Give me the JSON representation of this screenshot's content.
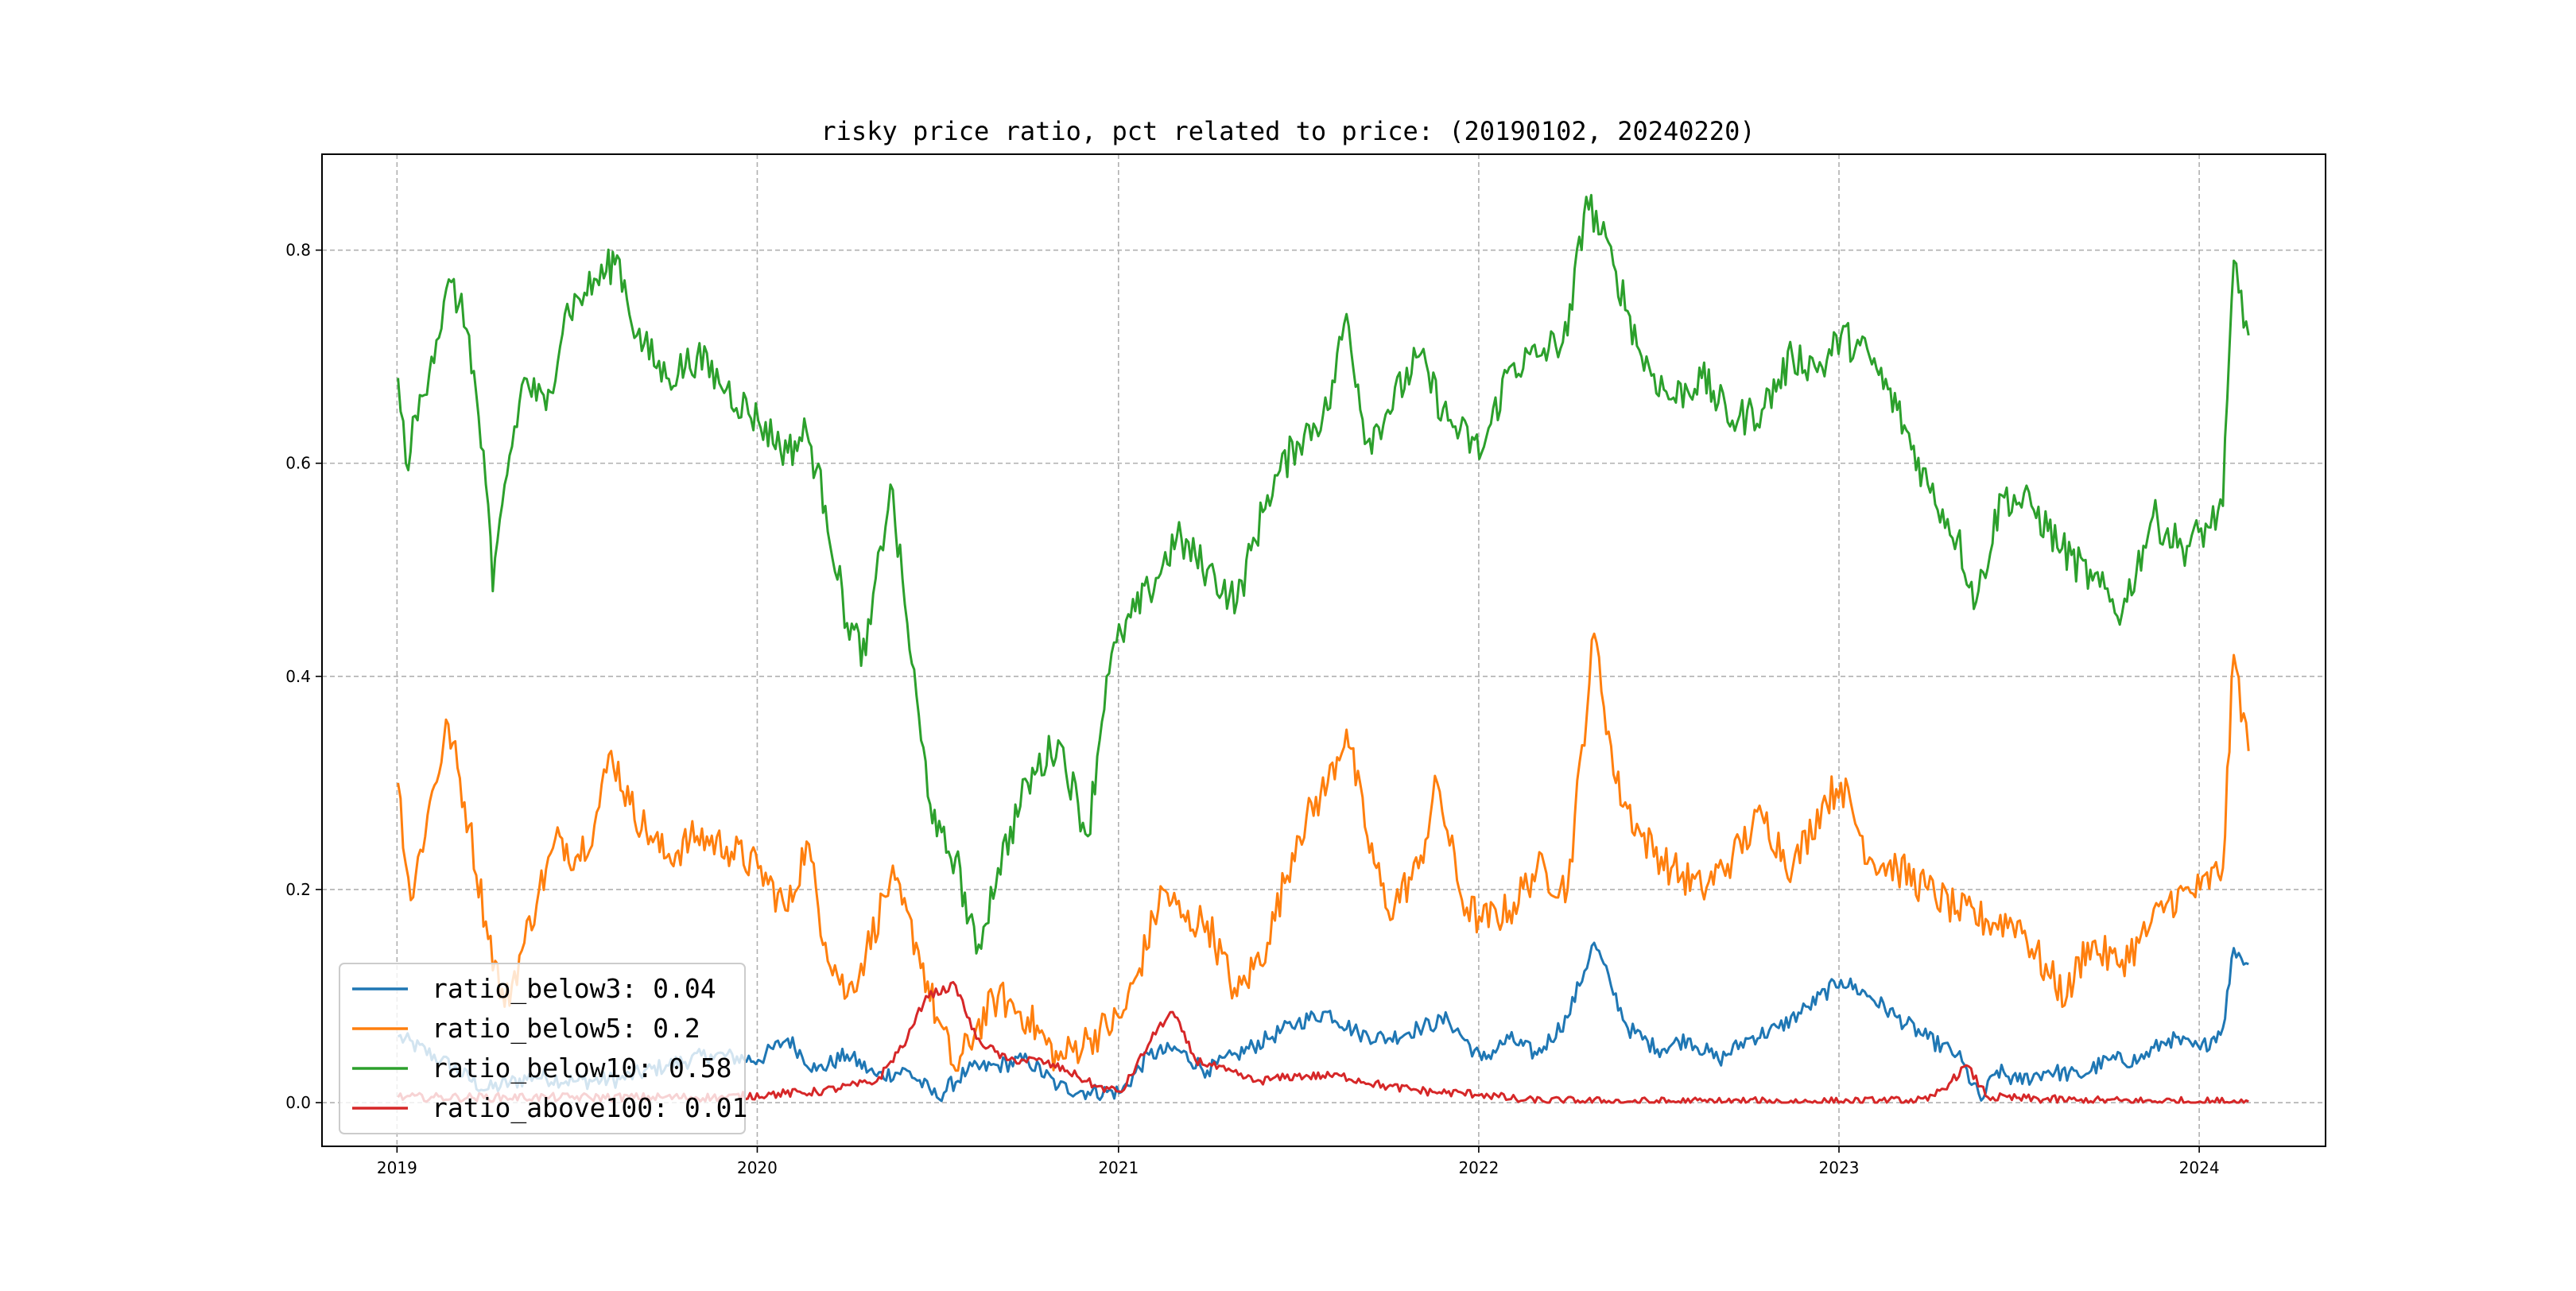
{
  "chart_data": {
    "type": "line",
    "title": "risky price ratio, pct related to price: (20190102, 20240220)",
    "xlabel": "",
    "ylabel": "",
    "x_range": [
      "2018-10-17",
      "2024-05-08"
    ],
    "x_ticks": [
      {
        "date": "2019-01-01",
        "label": "2019"
      },
      {
        "date": "2020-01-01",
        "label": "2020"
      },
      {
        "date": "2021-01-01",
        "label": "2021"
      },
      {
        "date": "2022-01-01",
        "label": "2022"
      },
      {
        "date": "2023-01-01",
        "label": "2023"
      },
      {
        "date": "2024-01-01",
        "label": "2024"
      }
    ],
    "ylim": [
      -0.041,
      0.89
    ],
    "y_ticks": [
      {
        "value": 0.0,
        "label": "0.0"
      },
      {
        "value": 0.2,
        "label": "0.2"
      },
      {
        "value": 0.4,
        "label": "0.4"
      },
      {
        "value": 0.6,
        "label": "0.6"
      },
      {
        "value": 0.8,
        "label": "0.8"
      }
    ],
    "grid": true,
    "legend_position": "lower-left",
    "series": [
      {
        "name": "ratio_below3",
        "legend_label": "ratio_below3: 0.04",
        "color": "#1f77b4",
        "points": [
          [
            "2019-01-02",
            0.062
          ],
          [
            "2019-02-15",
            0.04
          ],
          [
            "2019-04-01",
            0.012
          ],
          [
            "2019-05-20",
            0.025
          ],
          [
            "2019-07-01",
            0.02
          ],
          [
            "2019-08-15",
            0.022
          ],
          [
            "2019-10-01",
            0.035
          ],
          [
            "2019-11-15",
            0.045
          ],
          [
            "2020-01-02",
            0.04
          ],
          [
            "2020-02-01",
            0.06
          ],
          [
            "2020-03-01",
            0.03
          ],
          [
            "2020-04-01",
            0.045
          ],
          [
            "2020-05-01",
            0.025
          ],
          [
            "2020-06-01",
            0.03
          ],
          [
            "2020-07-01",
            0.005
          ],
          [
            "2020-08-01",
            0.03
          ],
          [
            "2020-09-01",
            0.035
          ],
          [
            "2020-10-01",
            0.04
          ],
          [
            "2020-11-01",
            0.015
          ],
          [
            "2020-12-01",
            0.01
          ],
          [
            "2021-01-04",
            0.01
          ],
          [
            "2021-02-01",
            0.045
          ],
          [
            "2021-03-01",
            0.05
          ],
          [
            "2021-04-01",
            0.03
          ],
          [
            "2021-05-01",
            0.045
          ],
          [
            "2021-06-01",
            0.06
          ],
          [
            "2021-07-01",
            0.075
          ],
          [
            "2021-08-01",
            0.085
          ],
          [
            "2021-09-01",
            0.065
          ],
          [
            "2021-10-01",
            0.06
          ],
          [
            "2021-11-01",
            0.07
          ],
          [
            "2021-12-01",
            0.078
          ],
          [
            "2022-01-04",
            0.04
          ],
          [
            "2022-02-01",
            0.06
          ],
          [
            "2022-03-01",
            0.045
          ],
          [
            "2022-04-01",
            0.08
          ],
          [
            "2022-04-28",
            0.15
          ],
          [
            "2022-05-15",
            0.11
          ],
          [
            "2022-06-01",
            0.07
          ],
          [
            "2022-07-01",
            0.05
          ],
          [
            "2022-08-01",
            0.06
          ],
          [
            "2022-09-01",
            0.04
          ],
          [
            "2022-10-01",
            0.06
          ],
          [
            "2022-11-01",
            0.07
          ],
          [
            "2022-12-01",
            0.09
          ],
          [
            "2023-01-03",
            0.115
          ],
          [
            "2023-02-01",
            0.1
          ],
          [
            "2023-03-01",
            0.08
          ],
          [
            "2023-04-01",
            0.06
          ],
          [
            "2023-05-01",
            0.045
          ],
          [
            "2023-05-25",
            0.002
          ],
          [
            "2023-06-10",
            0.03
          ],
          [
            "2023-07-01",
            0.02
          ],
          [
            "2023-08-01",
            0.03
          ],
          [
            "2023-09-01",
            0.025
          ],
          [
            "2023-10-01",
            0.04
          ],
          [
            "2023-11-01",
            0.04
          ],
          [
            "2023-12-01",
            0.06
          ],
          [
            "2024-01-02",
            0.05
          ],
          [
            "2024-01-25",
            0.07
          ],
          [
            "2024-02-05",
            0.145
          ],
          [
            "2024-02-20",
            0.13
          ]
        ]
      },
      {
        "name": "ratio_below5",
        "legend_label": "ratio_below5: 0.2",
        "color": "#ff7f0e",
        "points": [
          [
            "2019-01-02",
            0.3
          ],
          [
            "2019-01-15",
            0.19
          ],
          [
            "2019-02-01",
            0.27
          ],
          [
            "2019-02-22",
            0.355
          ],
          [
            "2019-03-15",
            0.26
          ],
          [
            "2019-04-01",
            0.17
          ],
          [
            "2019-04-20",
            0.09
          ],
          [
            "2019-05-10",
            0.15
          ],
          [
            "2019-05-25",
            0.2
          ],
          [
            "2019-06-15",
            0.25
          ],
          [
            "2019-07-01",
            0.23
          ],
          [
            "2019-07-20",
            0.26
          ],
          [
            "2019-08-06",
            0.33
          ],
          [
            "2019-08-25",
            0.28
          ],
          [
            "2019-09-15",
            0.25
          ],
          [
            "2019-10-01",
            0.23
          ],
          [
            "2019-11-01",
            0.25
          ],
          [
            "2019-12-01",
            0.24
          ],
          [
            "2020-01-02",
            0.22
          ],
          [
            "2020-02-01",
            0.18
          ],
          [
            "2020-02-20",
            0.245
          ],
          [
            "2020-03-10",
            0.15
          ],
          [
            "2020-04-01",
            0.1
          ],
          [
            "2020-04-20",
            0.14
          ],
          [
            "2020-05-15",
            0.21
          ],
          [
            "2020-06-10",
            0.15
          ],
          [
            "2020-07-01",
            0.08
          ],
          [
            "2020-07-20",
            0.03
          ],
          [
            "2020-08-10",
            0.07
          ],
          [
            "2020-09-01",
            0.1
          ],
          [
            "2020-10-01",
            0.08
          ],
          [
            "2020-11-01",
            0.04
          ],
          [
            "2020-12-01",
            0.06
          ],
          [
            "2021-01-04",
            0.08
          ],
          [
            "2021-01-20",
            0.12
          ],
          [
            "2021-02-15",
            0.2
          ],
          [
            "2021-03-10",
            0.17
          ],
          [
            "2021-04-01",
            0.17
          ],
          [
            "2021-05-01",
            0.1
          ],
          [
            "2021-06-01",
            0.15
          ],
          [
            "2021-07-01",
            0.25
          ],
          [
            "2021-08-01",
            0.3
          ],
          [
            "2021-08-20",
            0.35
          ],
          [
            "2021-09-10",
            0.25
          ],
          [
            "2021-10-01",
            0.18
          ],
          [
            "2021-11-01",
            0.22
          ],
          [
            "2021-11-20",
            0.3
          ],
          [
            "2021-12-15",
            0.19
          ],
          [
            "2022-01-04",
            0.17
          ],
          [
            "2022-02-01",
            0.18
          ],
          [
            "2022-03-01",
            0.22
          ],
          [
            "2022-04-01",
            0.2
          ],
          [
            "2022-04-28",
            0.44
          ],
          [
            "2022-05-20",
            0.3
          ],
          [
            "2022-06-15",
            0.25
          ],
          [
            "2022-07-15",
            0.22
          ],
          [
            "2022-08-15",
            0.2
          ],
          [
            "2022-09-15",
            0.23
          ],
          [
            "2022-10-15",
            0.27
          ],
          [
            "2022-11-15",
            0.22
          ],
          [
            "2022-12-15",
            0.28
          ],
          [
            "2023-01-03",
            0.3
          ],
          [
            "2023-02-01",
            0.23
          ],
          [
            "2023-03-01",
            0.22
          ],
          [
            "2023-04-01",
            0.2
          ],
          [
            "2023-05-01",
            0.18
          ],
          [
            "2023-06-01",
            0.17
          ],
          [
            "2023-07-01",
            0.17
          ],
          [
            "2023-08-01",
            0.12
          ],
          [
            "2023-08-20",
            0.1
          ],
          [
            "2023-09-10",
            0.15
          ],
          [
            "2023-10-10",
            0.13
          ],
          [
            "2023-11-01",
            0.15
          ],
          [
            "2023-12-01",
            0.19
          ],
          [
            "2024-01-02",
            0.2
          ],
          [
            "2024-01-25",
            0.22
          ],
          [
            "2024-02-05",
            0.42
          ],
          [
            "2024-02-20",
            0.33
          ]
        ]
      },
      {
        "name": "ratio_below10",
        "legend_label": "ratio_below10: 0.58",
        "color": "#2ca02c",
        "points": [
          [
            "2019-01-02",
            0.68
          ],
          [
            "2019-01-10",
            0.6
          ],
          [
            "2019-02-05",
            0.7
          ],
          [
            "2019-02-25",
            0.77
          ],
          [
            "2019-03-15",
            0.72
          ],
          [
            "2019-04-01",
            0.58
          ],
          [
            "2019-04-08",
            0.48
          ],
          [
            "2019-04-20",
            0.58
          ],
          [
            "2019-05-10",
            0.68
          ],
          [
            "2019-06-01",
            0.65
          ],
          [
            "2019-06-20",
            0.74
          ],
          [
            "2019-07-10",
            0.76
          ],
          [
            "2019-08-01",
            0.78
          ],
          [
            "2019-08-12",
            0.795
          ],
          [
            "2019-09-01",
            0.72
          ],
          [
            "2019-10-01",
            0.68
          ],
          [
            "2019-11-01",
            0.7
          ],
          [
            "2019-12-01",
            0.67
          ],
          [
            "2020-01-02",
            0.64
          ],
          [
            "2020-02-01",
            0.61
          ],
          [
            "2020-02-20",
            0.63
          ],
          [
            "2020-03-10",
            0.56
          ],
          [
            "2020-04-01",
            0.45
          ],
          [
            "2020-04-20",
            0.42
          ],
          [
            "2020-05-15",
            0.58
          ],
          [
            "2020-06-01",
            0.45
          ],
          [
            "2020-06-15",
            0.34
          ],
          [
            "2020-07-01",
            0.25
          ],
          [
            "2020-07-20",
            0.23
          ],
          [
            "2020-08-10",
            0.14
          ],
          [
            "2020-09-01",
            0.22
          ],
          [
            "2020-10-01",
            0.3
          ],
          [
            "2020-11-01",
            0.34
          ],
          [
            "2020-12-01",
            0.25
          ],
          [
            "2020-12-20",
            0.4
          ],
          [
            "2021-01-04",
            0.44
          ],
          [
            "2021-02-01",
            0.48
          ],
          [
            "2021-03-01",
            0.53
          ],
          [
            "2021-04-01",
            0.5
          ],
          [
            "2021-05-01",
            0.47
          ],
          [
            "2021-06-01",
            0.57
          ],
          [
            "2021-07-01",
            0.62
          ],
          [
            "2021-08-01",
            0.65
          ],
          [
            "2021-08-20",
            0.74
          ],
          [
            "2021-09-10",
            0.62
          ],
          [
            "2021-10-01",
            0.65
          ],
          [
            "2021-11-01",
            0.7
          ],
          [
            "2021-12-01",
            0.64
          ],
          [
            "2022-01-04",
            0.61
          ],
          [
            "2022-02-01",
            0.69
          ],
          [
            "2022-03-01",
            0.7
          ],
          [
            "2022-04-01",
            0.72
          ],
          [
            "2022-04-20",
            0.85
          ],
          [
            "2022-05-20",
            0.78
          ],
          [
            "2022-06-15",
            0.7
          ],
          [
            "2022-07-15",
            0.66
          ],
          [
            "2022-08-15",
            0.68
          ],
          [
            "2022-09-15",
            0.64
          ],
          [
            "2022-10-15",
            0.65
          ],
          [
            "2022-11-15",
            0.7
          ],
          [
            "2022-12-15",
            0.69
          ],
          [
            "2023-01-03",
            0.72
          ],
          [
            "2023-02-01",
            0.7
          ],
          [
            "2023-03-01",
            0.65
          ],
          [
            "2023-04-01",
            0.58
          ],
          [
            "2023-05-01",
            0.53
          ],
          [
            "2023-05-20",
            0.47
          ],
          [
            "2023-06-15",
            0.57
          ],
          [
            "2023-07-15",
            0.56
          ],
          [
            "2023-08-15",
            0.52
          ],
          [
            "2023-09-15",
            0.49
          ],
          [
            "2023-10-15",
            0.46
          ],
          [
            "2023-11-15",
            0.55
          ],
          [
            "2023-12-15",
            0.52
          ],
          [
            "2024-01-10",
            0.54
          ],
          [
            "2024-01-25",
            0.56
          ],
          [
            "2024-02-05",
            0.79
          ],
          [
            "2024-02-20",
            0.72
          ]
        ]
      },
      {
        "name": "ratio_above100",
        "legend_label": "ratio_above100: 0.01",
        "color": "#d62728",
        "points": [
          [
            "2019-01-02",
            0.005
          ],
          [
            "2019-06-01",
            0.005
          ],
          [
            "2019-12-01",
            0.005
          ],
          [
            "2020-01-15",
            0.008
          ],
          [
            "2020-03-01",
            0.01
          ],
          [
            "2020-05-01",
            0.02
          ],
          [
            "2020-06-01",
            0.06
          ],
          [
            "2020-06-20",
            0.1
          ],
          [
            "2020-07-20",
            0.11
          ],
          [
            "2020-08-10",
            0.06
          ],
          [
            "2020-09-10",
            0.04
          ],
          [
            "2020-10-10",
            0.04
          ],
          [
            "2020-11-10",
            0.03
          ],
          [
            "2020-12-10",
            0.015
          ],
          [
            "2021-01-04",
            0.01
          ],
          [
            "2021-02-10",
            0.07
          ],
          [
            "2021-02-25",
            0.085
          ],
          [
            "2021-03-20",
            0.04
          ],
          [
            "2021-04-20",
            0.03
          ],
          [
            "2021-05-20",
            0.02
          ],
          [
            "2021-07-01",
            0.025
          ],
          [
            "2021-08-15",
            0.025
          ],
          [
            "2021-10-01",
            0.015
          ],
          [
            "2021-11-15",
            0.01
          ],
          [
            "2022-01-04",
            0.008
          ],
          [
            "2022-02-15",
            0.002
          ],
          [
            "2022-06-01",
            0.001
          ],
          [
            "2022-10-01",
            0.001
          ],
          [
            "2023-01-03",
            0.001
          ],
          [
            "2023-04-01",
            0.002
          ],
          [
            "2023-04-25",
            0.02
          ],
          [
            "2023-05-10",
            0.035
          ],
          [
            "2023-06-01",
            0.005
          ],
          [
            "2023-09-01",
            0.002
          ],
          [
            "2024-01-02",
            0.001
          ],
          [
            "2024-02-20",
            0.001
          ]
        ]
      }
    ]
  }
}
